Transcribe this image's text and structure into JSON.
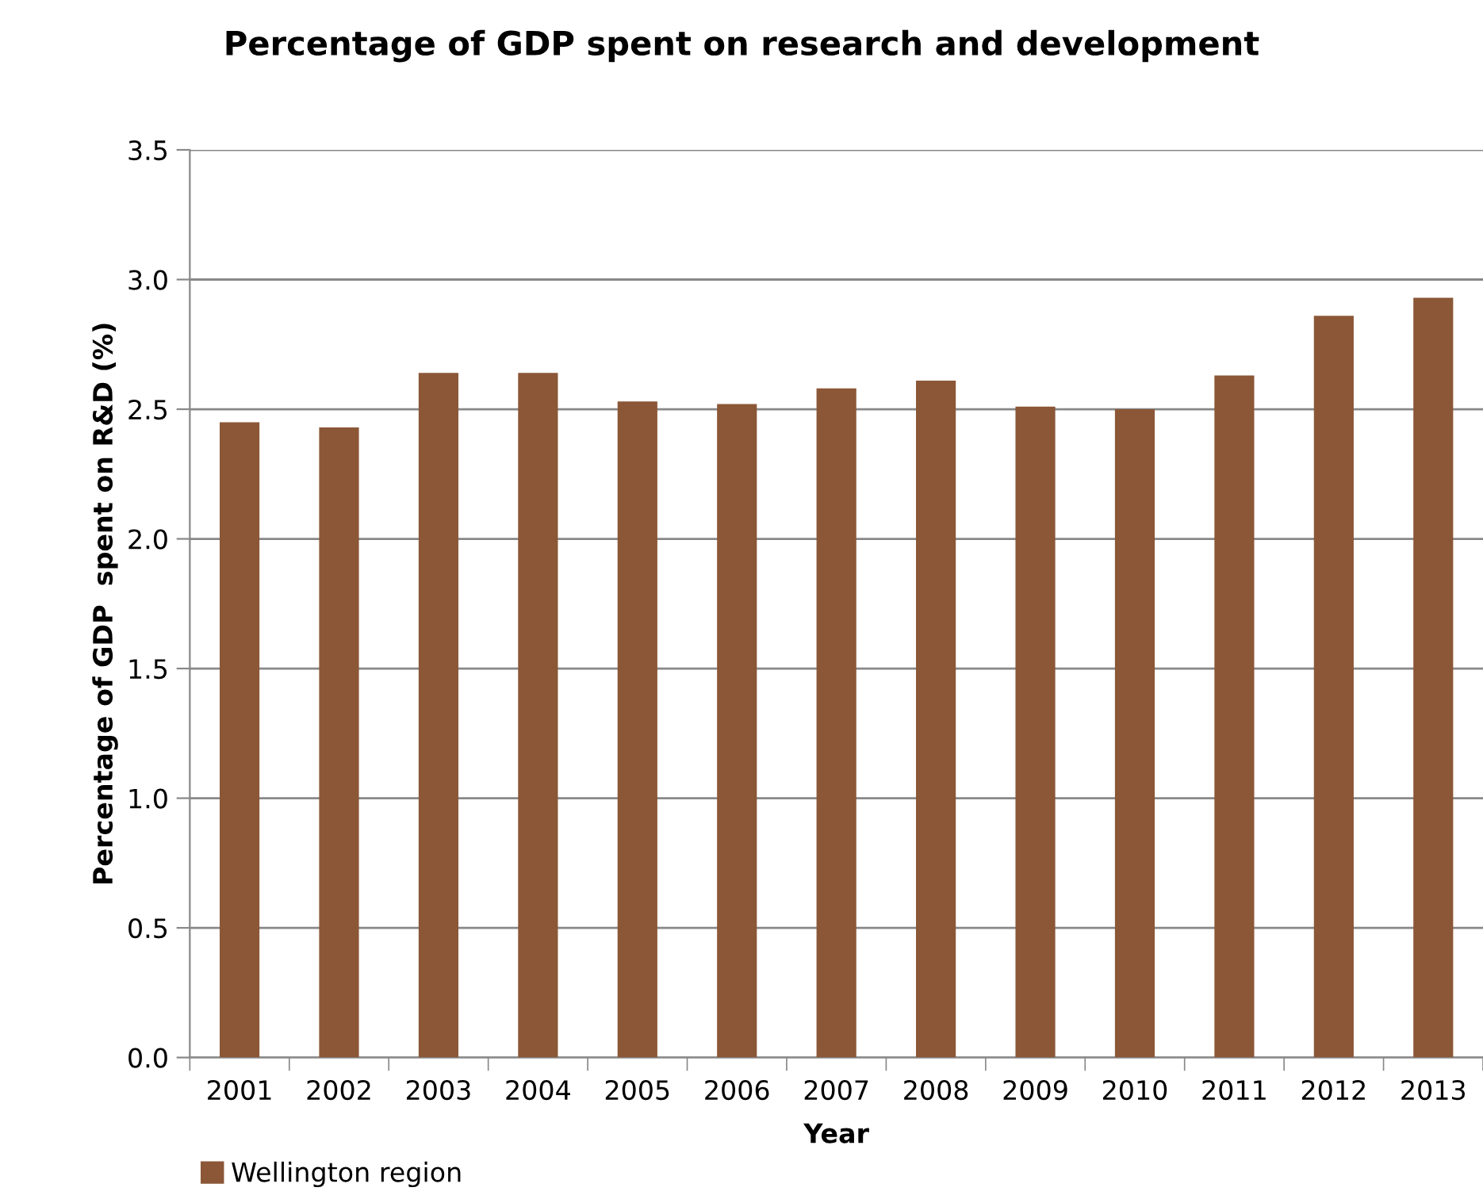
{
  "chart_data": {
    "type": "bar",
    "title": "Percentage of GDP spent on research and development",
    "xlabel": "Year",
    "ylabel": "Percentage of GDP  spent on R&D (%)",
    "categories": [
      "2001",
      "2002",
      "2003",
      "2004",
      "2005",
      "2006",
      "2007",
      "2008",
      "2009",
      "2010",
      "2011",
      "2012",
      "2013"
    ],
    "series": [
      {
        "name": "Wellington region",
        "color": "#8b5737",
        "values": [
          2.45,
          2.43,
          2.64,
          2.64,
          2.53,
          2.52,
          2.58,
          2.61,
          2.51,
          2.5,
          2.63,
          2.86,
          2.93
        ]
      }
    ],
    "ylim": [
      0,
      3.5
    ],
    "yticks": [
      {
        "value": 0,
        "label": "0.0"
      },
      {
        "value": 0.5,
        "label": "0.5"
      },
      {
        "value": 1,
        "label": "1.0"
      },
      {
        "value": 1.5,
        "label": "1.5"
      },
      {
        "value": 2,
        "label": "2.0"
      },
      {
        "value": 2.5,
        "label": "2.5"
      },
      {
        "value": 3,
        "label": "3.0"
      },
      {
        "value": 3.5,
        "label": "3.5"
      }
    ],
    "grid": "y",
    "legend": "bottom left"
  }
}
